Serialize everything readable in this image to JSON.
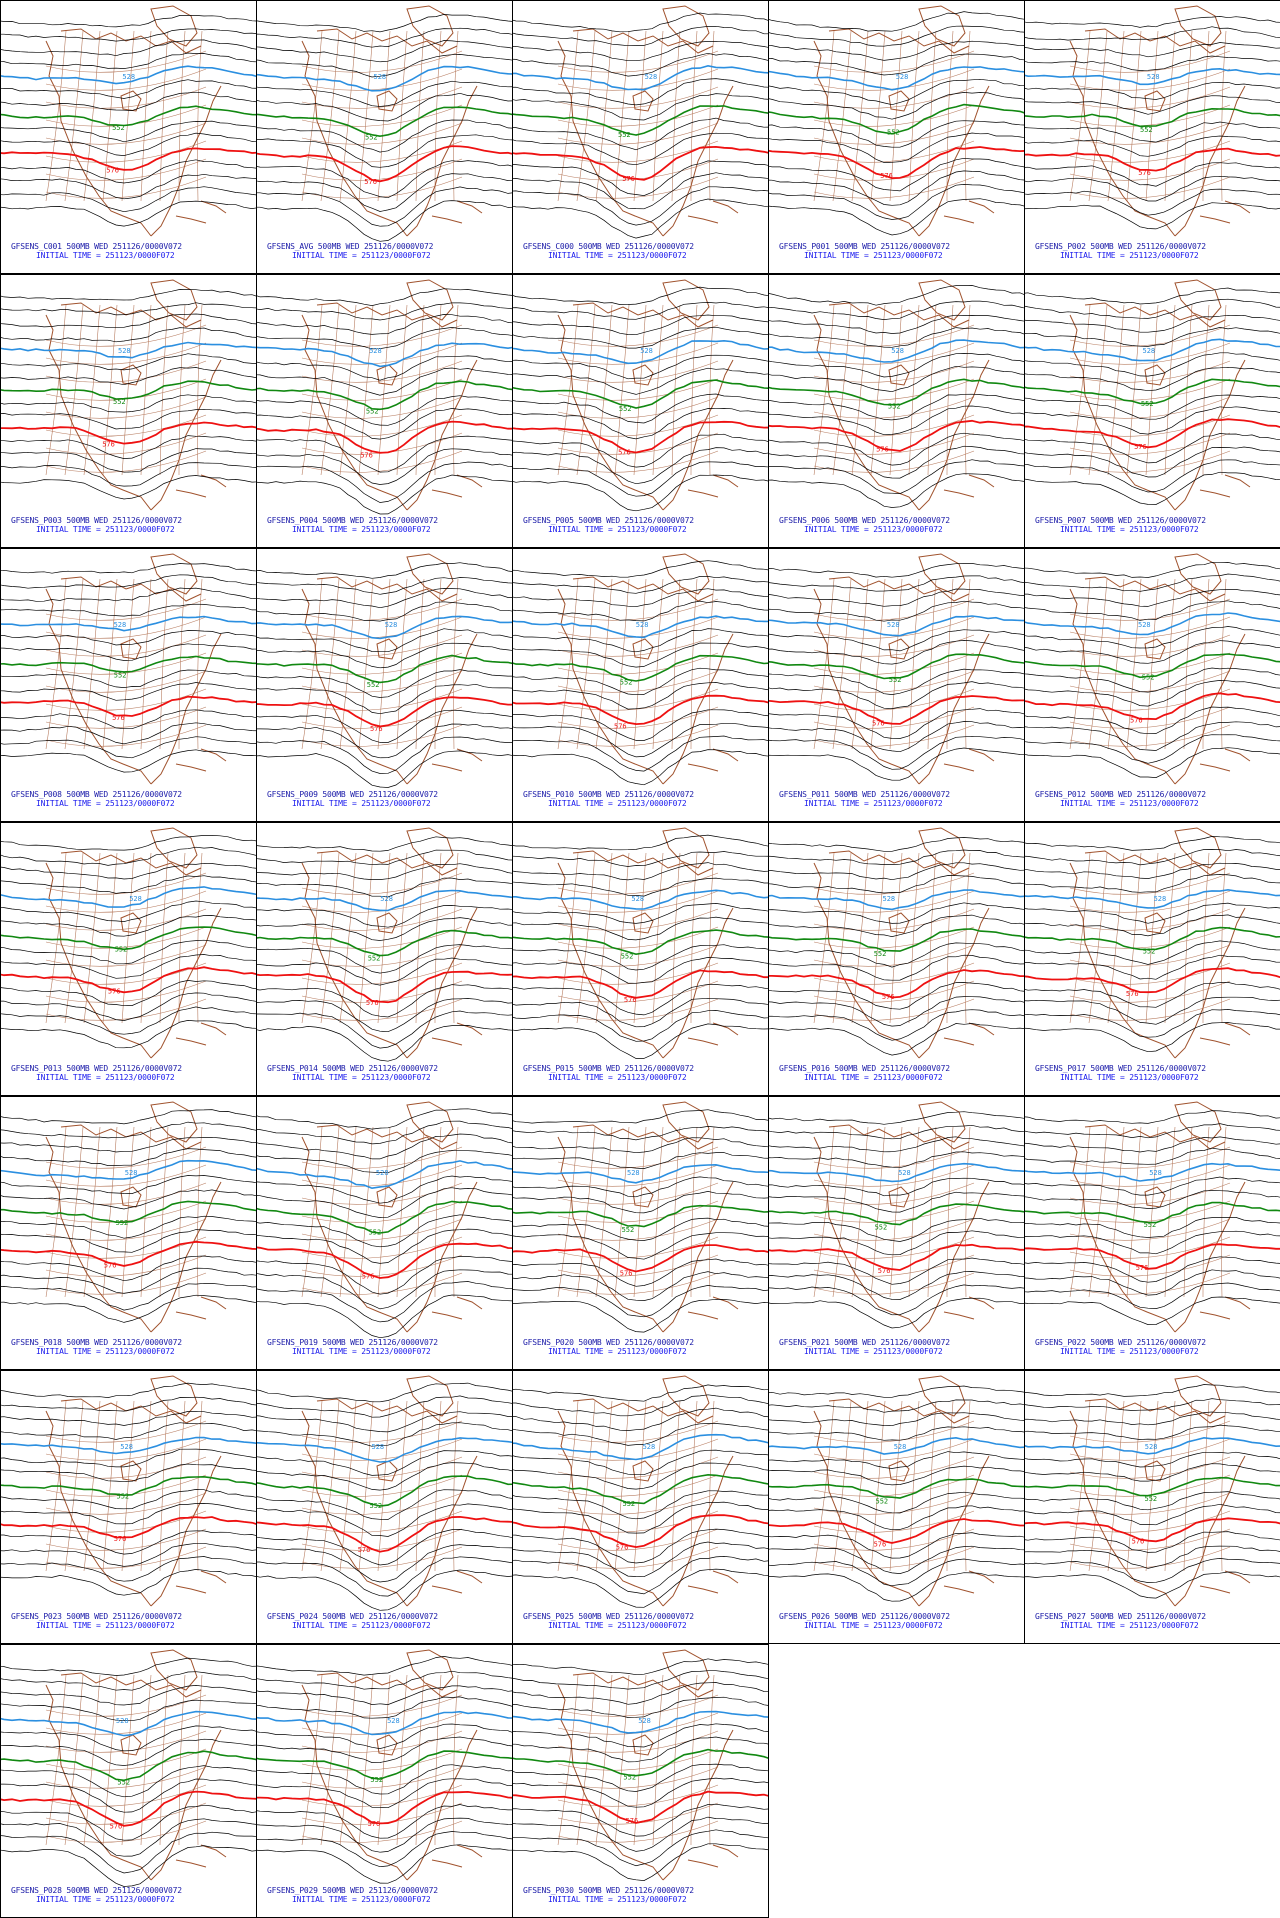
{
  "colors": {
    "background": "#ffffff",
    "panel_border": "#000000",
    "coastline": "#a0522d",
    "contour_default": "#000000",
    "contour_528": "#2b8fe0",
    "contour_552": "#118811",
    "contour_576": "#ee1111",
    "caption_line1": "#1a1aa8",
    "caption_line2": "#1a1aee"
  },
  "contour_labels": {
    "low": "528",
    "mid": "552",
    "high": "576"
  },
  "initial_time_line": "INITIAL TIME = 251123/0000F072",
  "panels": [
    {
      "title": "GFSENS_C001 500MB WED 251126/0000V072"
    },
    {
      "title": "GFSENS_AVG 500MB WED 251126/0000V072"
    },
    {
      "title": "GFSENS_C000 500MB WED 251126/0000V072"
    },
    {
      "title": "GFSENS_P001 500MB WED 251126/0000V072"
    },
    {
      "title": "GFSENS_P002 500MB WED 251126/0000V072"
    },
    {
      "title": "GFSENS_P003 500MB WED 251126/0000V072"
    },
    {
      "title": "GFSENS_P004 500MB WED 251126/0000V072"
    },
    {
      "title": "GFSENS_P005 500MB WED 251126/0000V072"
    },
    {
      "title": "GFSENS_P006 500MB WED 251126/0000V072"
    },
    {
      "title": "GFSENS_P007 500MB WED 251126/0000V072"
    },
    {
      "title": "GFSENS_P008 500MB WED 251126/0000V072"
    },
    {
      "title": "GFSENS_P009 500MB WED 251126/0000V072"
    },
    {
      "title": "GFSENS_P010 500MB WED 251126/0000V072"
    },
    {
      "title": "GFSENS_P011 500MB WED 251126/0000V072"
    },
    {
      "title": "GFSENS_P012 500MB WED 251126/0000V072"
    },
    {
      "title": "GFSENS_P013 500MB WED 251126/0000V072"
    },
    {
      "title": "GFSENS_P014 500MB WED 251126/0000V072"
    },
    {
      "title": "GFSENS_P015 500MB WED 251126/0000V072"
    },
    {
      "title": "GFSENS_P016 500MB WED 251126/0000V072"
    },
    {
      "title": "GFSENS_P017 500MB WED 251126/0000V072"
    },
    {
      "title": "GFSENS_P018 500MB WED 251126/0000V072"
    },
    {
      "title": "GFSENS_P019 500MB WED 251126/0000V072"
    },
    {
      "title": "GFSENS_P020 500MB WED 251126/0000V072"
    },
    {
      "title": "GFSENS_P021 500MB WED 251126/0000V072"
    },
    {
      "title": "GFSENS_P022 500MB WED 251126/0000V072"
    },
    {
      "title": "GFSENS_P023 500MB WED 251126/0000V072"
    },
    {
      "title": "GFSENS_P024 500MB WED 251126/0000V072"
    },
    {
      "title": "GFSENS_P025 500MB WED 251126/0000V072"
    },
    {
      "title": "GFSENS_P026 500MB WED 251126/0000V072"
    },
    {
      "title": "GFSENS_P027 500MB WED 251126/0000V072"
    },
    {
      "title": "GFSENS_P028 500MB WED 251126/0000V072"
    },
    {
      "title": "GFSENS_P029 500MB WED 251126/0000V072"
    },
    {
      "title": "GFSENS_P030 500MB WED 251126/0000V072"
    }
  ]
}
